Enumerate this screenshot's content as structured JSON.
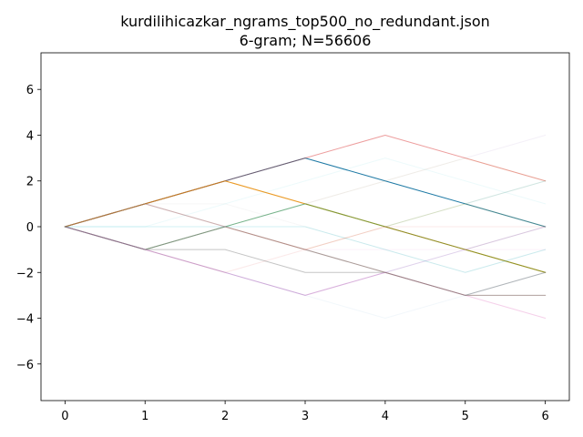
{
  "chart_data": {
    "type": "line",
    "title": "kurdilihicazkar_ngrams_top500_no_redundant.json",
    "subtitle": "6-gram; N=56606",
    "xlabel": "",
    "ylabel": "",
    "xlim": [
      -0.3,
      6.3
    ],
    "ylim": [
      -7.6,
      7.6
    ],
    "xticks": [
      0,
      1,
      2,
      3,
      4,
      5,
      6
    ],
    "yticks": [
      -6,
      -4,
      -2,
      0,
      2,
      4,
      6
    ],
    "grid": false,
    "legend": "none",
    "x": [
      0,
      1,
      2,
      3,
      4,
      5,
      6
    ],
    "series": [
      {
        "values": [
          0,
          1,
          2,
          3,
          2,
          1,
          0
        ],
        "color": "#1f77b4",
        "opacity": 1.0
      },
      {
        "values": [
          0,
          1,
          2,
          1,
          0,
          -1,
          -2
        ],
        "color": "#ff7f0e",
        "opacity": 0.9
      },
      {
        "values": [
          0,
          -1,
          0,
          1,
          0,
          -1,
          -2
        ],
        "color": "#2ca02c",
        "opacity": 0.6
      },
      {
        "values": [
          0,
          -1,
          0,
          -1,
          -2,
          -3,
          -2
        ],
        "color": "#7f7f7f",
        "opacity": 0.55
      },
      {
        "values": [
          0,
          1,
          2,
          3,
          4,
          3,
          2
        ],
        "color": "#d62728",
        "opacity": 0.45
      },
      {
        "values": [
          0,
          -1,
          -2,
          -3,
          -2,
          -3,
          -4
        ],
        "color": "#e377c2",
        "opacity": 0.35
      },
      {
        "values": [
          0,
          -1,
          -1,
          -2,
          -2,
          -3,
          -3
        ],
        "color": "#7f7f7f",
        "opacity": 0.45
      },
      {
        "values": [
          0,
          -1,
          -2,
          -3,
          -2,
          -1,
          0
        ],
        "color": "#9467bd",
        "opacity": 0.3
      },
      {
        "values": [
          0,
          1,
          0,
          -1,
          -2,
          -3,
          -3
        ],
        "color": "#8c564b",
        "opacity": 0.3
      },
      {
        "values": [
          0,
          1,
          2,
          1,
          0,
          1,
          0
        ],
        "color": "#bcbd22",
        "opacity": 0.25
      },
      {
        "values": [
          0,
          0,
          0,
          0,
          -1,
          -2,
          -1
        ],
        "color": "#17becf",
        "opacity": 0.2
      },
      {
        "values": [
          0,
          1,
          0,
          1,
          0,
          1,
          2
        ],
        "color": "#1f77b4",
        "opacity": 0.12
      },
      {
        "values": [
          0,
          -1,
          0,
          1,
          2,
          3,
          4
        ],
        "color": "#9467bd",
        "opacity": 0.1
      },
      {
        "values": [
          0,
          1,
          0,
          -1,
          0,
          -1,
          -2
        ],
        "color": "#ff7f0e",
        "opacity": 0.12
      },
      {
        "values": [
          0,
          1,
          2,
          3,
          2,
          1,
          2
        ],
        "color": "#2ca02c",
        "opacity": 0.1
      },
      {
        "values": [
          0,
          -1,
          -2,
          -1,
          0,
          0,
          0
        ],
        "color": "#d62728",
        "opacity": 0.1
      },
      {
        "values": [
          0,
          1,
          0,
          -1,
          -1,
          -1,
          -1
        ],
        "color": "#e377c2",
        "opacity": 0.1
      },
      {
        "values": [
          0,
          0,
          1,
          2,
          3,
          2,
          1
        ],
        "color": "#17becf",
        "opacity": 0.08
      },
      {
        "values": [
          0,
          -1,
          0,
          -1,
          0,
          -1,
          0
        ],
        "color": "#8c564b",
        "opacity": 0.08
      },
      {
        "values": [
          0,
          1,
          2,
          1,
          2,
          3,
          2
        ],
        "color": "#bcbd22",
        "opacity": 0.08
      },
      {
        "values": [
          0,
          -1,
          -2,
          -3,
          -4,
          -3,
          -2
        ],
        "color": "#1f77b4",
        "opacity": 0.06
      },
      {
        "values": [
          0,
          1,
          1,
          0,
          -1,
          -2,
          -1
        ],
        "color": "#7f7f7f",
        "opacity": 0.06
      }
    ]
  }
}
